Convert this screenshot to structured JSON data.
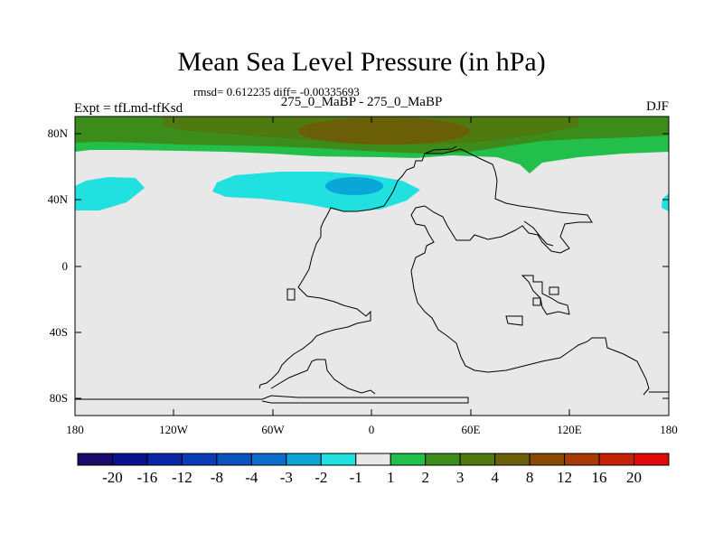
{
  "title": "Mean Sea Level Pressure (in hPa)",
  "stats": "rmsd= 0.612235 diff= -0.00335693",
  "experiment": "Expt = tfLmd-tfKsd",
  "runs": "275_0_MaBP - 275_0_MaBP",
  "season": "DJF",
  "latitude_labels": [
    "80N",
    "40N",
    "0",
    "40S",
    "80S"
  ],
  "longitude_labels": [
    "180",
    "120W",
    "60W",
    "0",
    "60E",
    "120E",
    "180"
  ],
  "colorbar": {
    "labels": [
      "-20",
      "-16",
      "-12",
      "-8",
      "-4",
      "-3",
      "-2",
      "-1",
      "1",
      "2",
      "3",
      "4",
      "8",
      "12",
      "16",
      "20"
    ],
    "colors": [
      "#1a0a6b",
      "#0a1090",
      "#0a24a8",
      "#0a3cb8",
      "#0a52c0",
      "#0a6ccc",
      "#0aa6d8",
      "#20e0e0",
      "#e8e8e8",
      "#22c04a",
      "#3c8c1c",
      "#4e7a10",
      "#6a5e08",
      "#8a4a06",
      "#a83a06",
      "#c82206",
      "#e00a06"
    ]
  },
  "colors": {
    "land_neutral": "#e8e8e8",
    "positive_light": "#22c04a",
    "positive_mid": "#3c8c1c",
    "positive_high": "#4e7a10",
    "peak": "#6a5e08",
    "negative_light": "#20e0e0",
    "negative_mid": "#0aa6d8"
  }
}
